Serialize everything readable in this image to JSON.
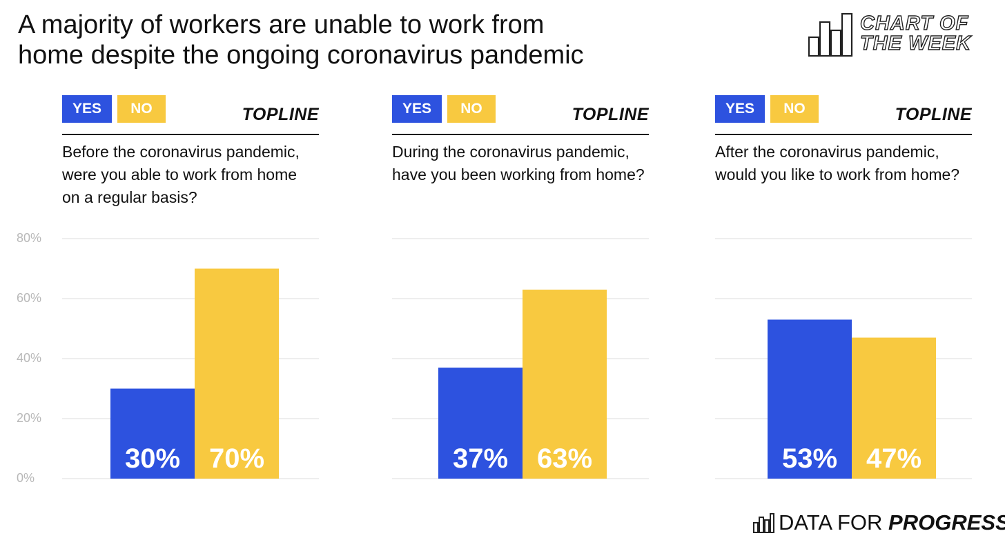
{
  "title_lines": [
    "A majority of workers are unable to work from",
    "home despite the ongoing coronavirus pandemic"
  ],
  "badge": {
    "line1": "CHART OF",
    "line2": "THE WEEK"
  },
  "brand": {
    "prefix": "DATA FOR",
    "emphasis": "PROGRESS"
  },
  "colors": {
    "yes": "#2d52df",
    "no": "#f8c940",
    "grid": "#dddddd",
    "tick": "#b8b8b8"
  },
  "y_ticks": [
    "80%",
    "60%",
    "40%",
    "20%",
    "0%"
  ],
  "panels": [
    {
      "legend_yes": "YES",
      "legend_no": "NO",
      "topline": "TOPLINE",
      "question_lines": [
        "Before the coronavirus pandemic,",
        "were you able to work from home",
        "on a regular basis?"
      ],
      "label_yes": "30%",
      "label_no": "70%"
    },
    {
      "legend_yes": "YES",
      "legend_no": "NO",
      "topline": "TOPLINE",
      "question_lines": [
        "During the coronavirus pandemic,",
        "have you been working from home?"
      ],
      "label_yes": "37%",
      "label_no": "63%"
    },
    {
      "legend_yes": "YES",
      "legend_no": "NO",
      "topline": "TOPLINE",
      "question_lines": [
        "After the coronavirus pandemic,",
        "would you like to work from home?"
      ],
      "label_yes": "53%",
      "label_no": "47%"
    }
  ],
  "chart_data": [
    {
      "type": "bar",
      "title": "Before the coronavirus pandemic, were you able to work from home on a regular basis?",
      "categories": [
        "YES",
        "NO"
      ],
      "values": [
        30,
        70
      ],
      "unit": "%",
      "ylim": [
        0,
        80
      ],
      "yticks": [
        0,
        20,
        40,
        60,
        80
      ],
      "grid": true
    },
    {
      "type": "bar",
      "title": "During the coronavirus pandemic, have you been working from home?",
      "categories": [
        "YES",
        "NO"
      ],
      "values": [
        37,
        63
      ],
      "unit": "%",
      "ylim": [
        0,
        80
      ],
      "yticks": [
        0,
        20,
        40,
        60,
        80
      ],
      "grid": true
    },
    {
      "type": "bar",
      "title": "After the coronavirus pandemic, would you like to work from home?",
      "categories": [
        "YES",
        "NO"
      ],
      "values": [
        53,
        47
      ],
      "unit": "%",
      "ylim": [
        0,
        80
      ],
      "yticks": [
        0,
        20,
        40,
        60,
        80
      ],
      "grid": true
    }
  ]
}
